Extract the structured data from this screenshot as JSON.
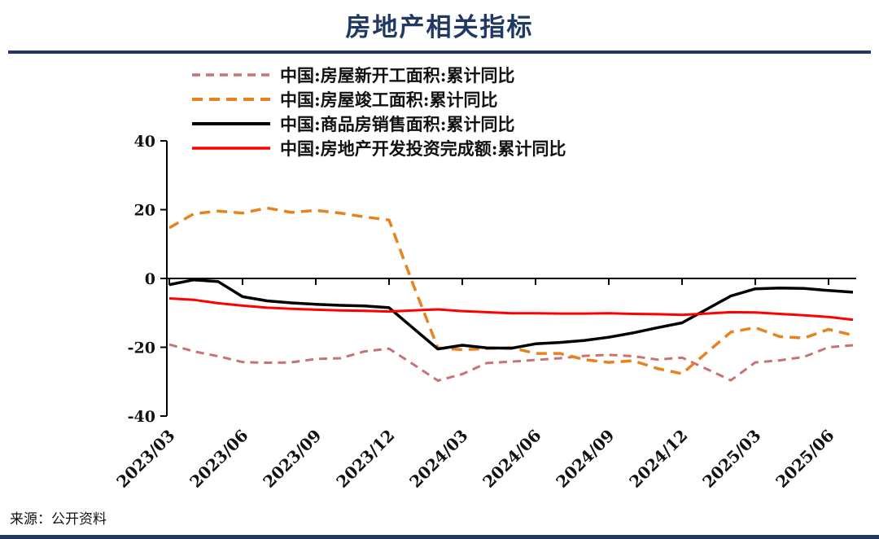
{
  "page": {
    "title": "房地产相关指标",
    "source": "来源：公开资料",
    "accent_color": "#1f3864"
  },
  "chart_data": {
    "type": "line",
    "title": "房地产相关指标",
    "ylabel": "",
    "xlabel": "",
    "ylim": [
      -40,
      40
    ],
    "yticks": [
      40,
      20,
      0,
      -20,
      -40
    ],
    "grid": false,
    "legend_position": "top-left",
    "x": [
      "2023/03",
      "2023/04",
      "2023/05",
      "2023/06",
      "2023/07",
      "2023/08",
      "2023/09",
      "2023/10",
      "2023/11",
      "2023/12",
      "2024/01",
      "2024/02",
      "2024/03",
      "2024/04",
      "2024/05",
      "2024/06",
      "2024/07",
      "2024/08",
      "2024/09",
      "2024/10",
      "2024/11",
      "2024/12",
      "2025/01",
      "2025/02",
      "2025/03",
      "2025/04",
      "2025/05",
      "2025/06",
      "2025/07"
    ],
    "xtick_labels": [
      "2023/03",
      "2023/06",
      "2023/09",
      "2023/12",
      "2024/03",
      "2024/06",
      "2024/09",
      "2024/12",
      "2025/03",
      "2025/06"
    ],
    "series": [
      {
        "name": "中国:房屋新开工面积:累计同比",
        "color": "#c97276",
        "style": "dashed",
        "dash": "10 7",
        "width": 3,
        "values": [
          -19.2,
          -21.2,
          -22.6,
          -24.3,
          -24.5,
          -24.4,
          -23.4,
          -23.2,
          -21.2,
          -20.4,
          -25.0,
          -29.7,
          -27.8,
          -24.6,
          -24.2,
          -23.7,
          -23.2,
          -22.5,
          -22.2,
          -22.6,
          -23.6,
          -23.0,
          -26.3,
          -29.6,
          -24.4,
          -23.8,
          -22.8,
          -20.0,
          -19.4
        ]
      },
      {
        "name": "中国:房屋竣工面积:累计同比",
        "color": "#e8821e",
        "style": "dashed",
        "dash": "13 8",
        "width": 3.5,
        "values": [
          14.7,
          18.8,
          19.6,
          19.0,
          20.5,
          19.2,
          19.8,
          19.0,
          17.9,
          17.0,
          -2.0,
          -20.2,
          -20.7,
          -20.4,
          -20.1,
          -21.8,
          -21.8,
          -23.6,
          -24.4,
          -23.9,
          -26.2,
          -27.7,
          -21.6,
          -15.6,
          -14.3,
          -16.9,
          -17.3,
          -14.8,
          -16.5
        ]
      },
      {
        "name": "中国:商品房销售面积:累计同比",
        "color": "#000000",
        "style": "solid",
        "dash": "",
        "width": 3.5,
        "values": [
          -1.8,
          -0.4,
          -0.9,
          -5.3,
          -6.5,
          -7.1,
          -7.5,
          -7.8,
          -8.0,
          -8.5,
          -14.5,
          -20.5,
          -19.4,
          -20.2,
          -20.3,
          -19.0,
          -18.6,
          -18.0,
          -17.1,
          -15.8,
          -14.3,
          -12.9,
          -9.0,
          -5.1,
          -3.0,
          -2.8,
          -2.9,
          -3.5,
          -4.0
        ]
      },
      {
        "name": "中国:房地产开发投资完成额:累计同比",
        "color": "#ff0000",
        "style": "solid",
        "dash": "",
        "width": 3,
        "values": [
          -5.8,
          -6.2,
          -7.2,
          -7.9,
          -8.5,
          -8.8,
          -9.1,
          -9.3,
          -9.4,
          -9.6,
          -9.3,
          -9.0,
          -9.5,
          -9.8,
          -10.1,
          -10.1,
          -10.2,
          -10.2,
          -10.1,
          -10.3,
          -10.4,
          -10.6,
          -10.2,
          -9.8,
          -9.9,
          -10.3,
          -10.7,
          -11.2,
          -12.0
        ]
      }
    ]
  }
}
